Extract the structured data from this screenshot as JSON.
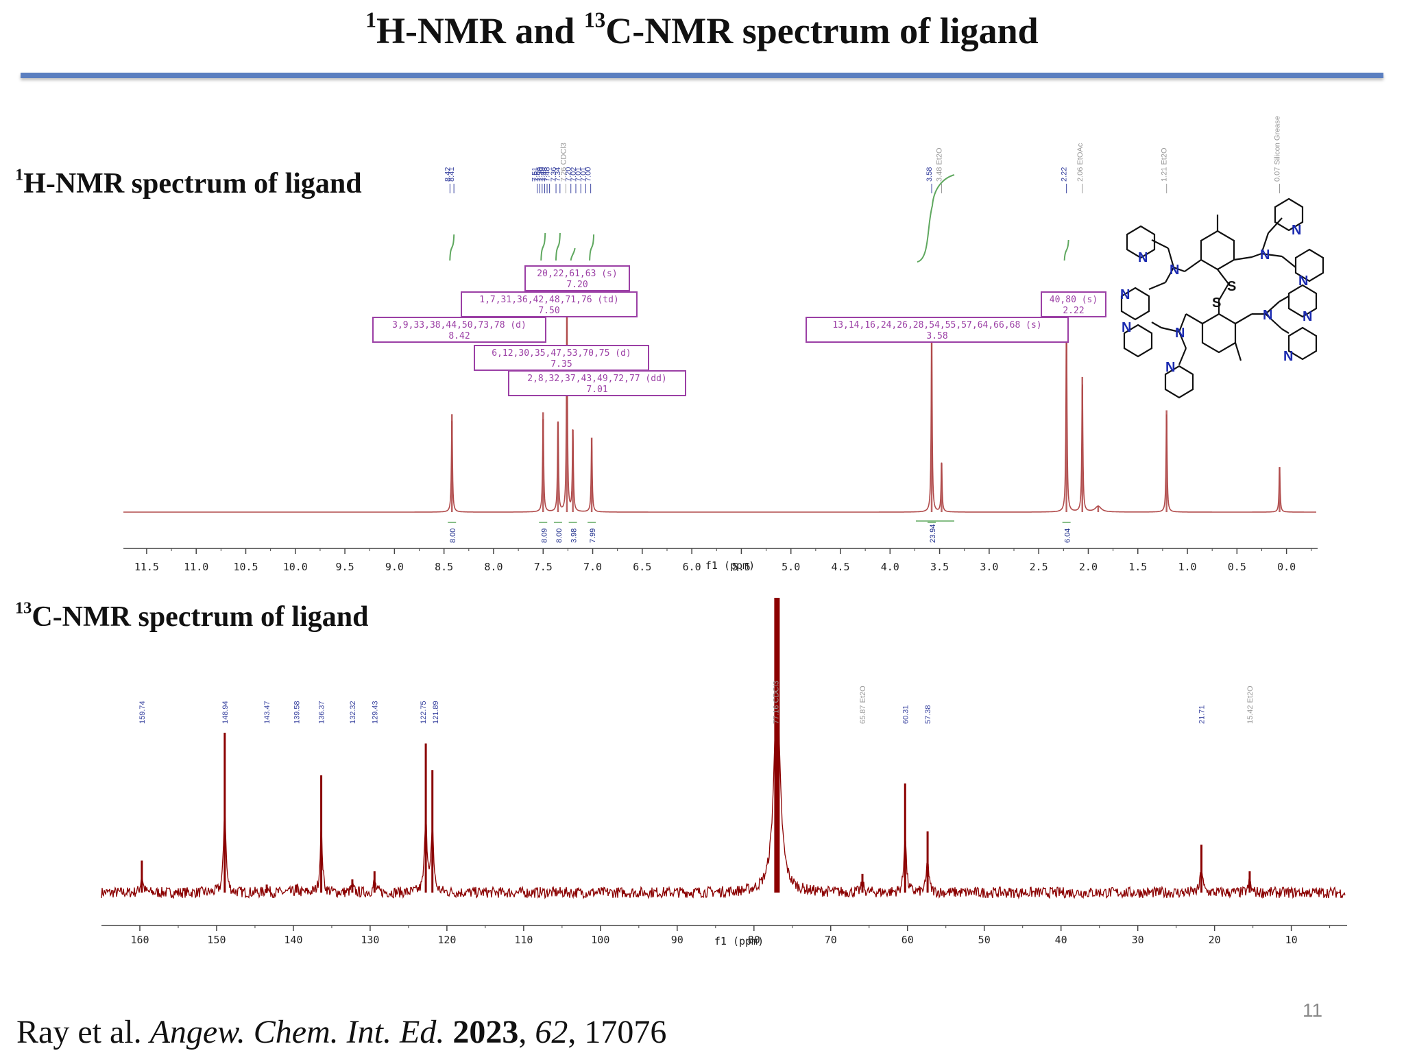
{
  "slide": {
    "title_pre": "1",
    "title_mid": "H-NMR and ",
    "title_sup2": "13",
    "title_post": "C-NMR spectrum of ligand",
    "h_label_sup": "1",
    "h_label": "H-NMR spectrum of ligand",
    "c_label_sup": "13",
    "c_label": "C-NMR spectrum of ligand",
    "page_number": "11",
    "citation": {
      "authors": "Ray et al. ",
      "journal": "Angew. Chem. Int. Ed.",
      "year": "2023",
      "volume": "62",
      "pages": "17076"
    }
  },
  "colors": {
    "accent_rule": "#5b7fc0",
    "spectrum_h": "#b04a4a",
    "spectrum_c": "#8b0000",
    "integral": "#5fa85f",
    "peak_label_h": "#3a44a0",
    "annotation_box": "#9b3fa5"
  },
  "chart_data": [
    {
      "type": "line",
      "name": "1H-NMR",
      "xlabel": "f1 (ppm)",
      "xlim": [
        11.7,
        -0.3
      ],
      "x_ticks": [
        "11.5",
        "11.0",
        "10.5",
        "10.0",
        "9.5",
        "9.0",
        "8.5",
        "8.0",
        "7.5",
        "7.0",
        "6.5",
        "6.0",
        "5.5",
        "5.0",
        "4.5",
        "4.0",
        "3.5",
        "3.0",
        "2.5",
        "2.0",
        "1.5",
        "1.0",
        "0.5",
        "0.0"
      ],
      "peaks": [
        {
          "ppm": 8.42,
          "height": 0.5
        },
        {
          "ppm": 7.5,
          "height": 0.51
        },
        {
          "ppm": 7.35,
          "height": 0.46
        },
        {
          "ppm": 7.26,
          "height": 1.0
        },
        {
          "ppm": 7.2,
          "height": 0.42
        },
        {
          "ppm": 7.01,
          "height": 0.38
        },
        {
          "ppm": 3.58,
          "height": 0.9
        },
        {
          "ppm": 3.48,
          "height": 0.25
        },
        {
          "ppm": 2.22,
          "height": 1.0
        },
        {
          "ppm": 2.06,
          "height": 0.69
        },
        {
          "ppm": 1.9,
          "height": 0.03
        },
        {
          "ppm": 1.21,
          "height": 0.52
        },
        {
          "ppm": 0.07,
          "height": 0.23
        }
      ],
      "peak_labels": [
        "8.42",
        "8.41",
        "7.51",
        "7.51",
        "7.50",
        "7.49",
        "7.48",
        "7.48",
        "7.36",
        "7.34",
        "7.26 CDCl3",
        "7.20",
        "7.02",
        "7.01",
        "7.01",
        "7.00",
        "3.58",
        "3.48 Et2O",
        "2.22",
        "2.06 EtOAc",
        "1.21 Et2O",
        "0.07 Silicon Grease"
      ],
      "integrals": [
        {
          "ppm": 8.42,
          "value": "8.00"
        },
        {
          "ppm": 7.5,
          "value": "8.09"
        },
        {
          "ppm": 7.35,
          "value": "8.00"
        },
        {
          "ppm": 7.2,
          "value": "3.98"
        },
        {
          "ppm": 7.01,
          "value": "7.99"
        },
        {
          "ppm": 3.58,
          "value": "23.94"
        },
        {
          "ppm": 2.22,
          "value": "6.04"
        }
      ],
      "annotations": [
        {
          "label": "20,22,61,63 (s)",
          "shift": "7.20"
        },
        {
          "label": "1,7,31,36,42,48,71,76 (td)",
          "shift": "7.50"
        },
        {
          "label": "3,9,33,38,44,50,73,78 (d)",
          "shift": "8.42"
        },
        {
          "label": "6,12,30,35,47,53,70,75 (d)",
          "shift": "7.35"
        },
        {
          "label": "2,8,32,37,43,49,72,77 (dd)",
          "shift": "7.01"
        },
        {
          "label": "40,80 (s)",
          "shift": "2.22"
        },
        {
          "label": "13,14,16,24,26,28,54,55,57,64,66,68 (s)",
          "shift": "3.58"
        }
      ]
    },
    {
      "type": "line",
      "name": "13C-NMR",
      "xlabel": "f1 (ppm)",
      "xlim": [
        165,
        3
      ],
      "x_ticks": [
        "160",
        "150",
        "140",
        "130",
        "120",
        "110",
        "100",
        "90",
        "80",
        "70",
        "60",
        "50",
        "40",
        "30",
        "20",
        "10"
      ],
      "peaks": [
        {
          "ppm": 159.74,
          "height": 0.12
        },
        {
          "ppm": 148.94,
          "height": 0.6
        },
        {
          "ppm": 143.47,
          "height": 0.03
        },
        {
          "ppm": 139.58,
          "height": 0.03
        },
        {
          "ppm": 136.37,
          "height": 0.44
        },
        {
          "ppm": 132.32,
          "height": 0.05
        },
        {
          "ppm": 129.43,
          "height": 0.08
        },
        {
          "ppm": 122.75,
          "height": 0.56
        },
        {
          "ppm": 121.89,
          "height": 0.46
        },
        {
          "ppm": 77.0,
          "height": 1.4
        },
        {
          "ppm": 65.87,
          "height": 0.07
        },
        {
          "ppm": 60.31,
          "height": 0.41
        },
        {
          "ppm": 57.38,
          "height": 0.23
        },
        {
          "ppm": 21.71,
          "height": 0.18
        },
        {
          "ppm": 15.42,
          "height": 0.08
        }
      ],
      "peak_labels": [
        "159.74",
        "148.94",
        "143.47",
        "139.58",
        "136.37",
        "132.32",
        "129.43",
        "122.75",
        "121.89",
        "77.16 CDCl3",
        "65.87 Et2O",
        "60.31",
        "57.38",
        "21.71",
        "15.42 Et2O"
      ]
    }
  ]
}
